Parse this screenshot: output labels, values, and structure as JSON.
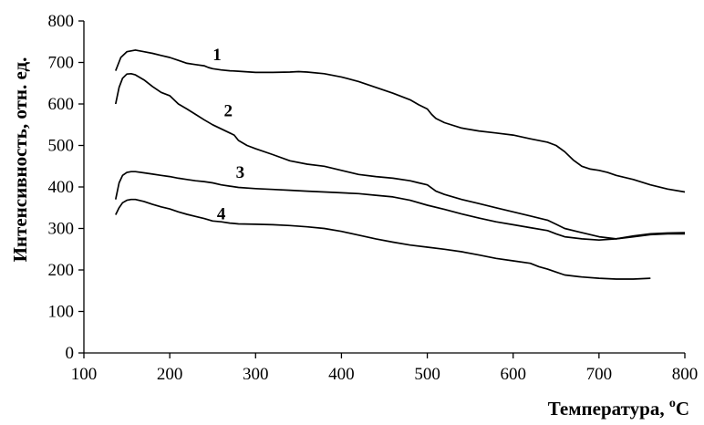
{
  "chart_data": {
    "type": "line",
    "xlabel": "Температура, °C",
    "xlabel_main": "Температура, ",
    "xlabel_sup": "o",
    "xlabel_unit": "C",
    "ylabel": "Интенсивность, отн. ед.",
    "xlim": [
      100,
      800
    ],
    "ylim": [
      0,
      800
    ],
    "xticks": [
      100,
      200,
      300,
      400,
      500,
      600,
      700,
      800
    ],
    "yticks": [
      0,
      100,
      200,
      300,
      400,
      500,
      600,
      700,
      800
    ],
    "grid": false,
    "series": [
      {
        "name": "1",
        "label_at": [
          250,
          705
        ],
        "x": [
          137,
          143,
          150,
          160,
          170,
          180,
          190,
          200,
          210,
          220,
          230,
          240,
          245,
          250,
          260,
          270,
          280,
          300,
          320,
          340,
          350,
          360,
          380,
          400,
          420,
          440,
          460,
          480,
          490,
          500,
          505,
          510,
          520,
          540,
          560,
          580,
          600,
          620,
          640,
          650,
          660,
          670,
          680,
          690,
          700,
          710,
          720,
          740,
          760,
          780,
          800
        ],
        "y": [
          680,
          712,
          726,
          730,
          726,
          722,
          717,
          712,
          705,
          698,
          695,
          692,
          688,
          685,
          682,
          680,
          679,
          676,
          676,
          677,
          678,
          677,
          673,
          665,
          654,
          640,
          626,
          610,
          598,
          588,
          575,
          565,
          555,
          542,
          535,
          530,
          525,
          516,
          508,
          500,
          485,
          465,
          450,
          443,
          440,
          435,
          428,
          418,
          405,
          395,
          388
        ]
      },
      {
        "name": "2",
        "label_at": [
          263,
          570
        ],
        "x": [
          137,
          141,
          145,
          150,
          155,
          160,
          170,
          180,
          190,
          200,
          210,
          220,
          230,
          240,
          250,
          260,
          270,
          275,
          280,
          290,
          300,
          320,
          340,
          360,
          380,
          400,
          420,
          440,
          460,
          480,
          490,
          500,
          510,
          520,
          540,
          560,
          580,
          600,
          620,
          640,
          650,
          660,
          680,
          700,
          720,
          740,
          760,
          780,
          800
        ],
        "y": [
          600,
          640,
          662,
          672,
          673,
          670,
          658,
          642,
          628,
          620,
          600,
          588,
          575,
          562,
          550,
          540,
          530,
          525,
          512,
          500,
          492,
          478,
          463,
          455,
          450,
          440,
          430,
          425,
          421,
          415,
          410,
          405,
          390,
          382,
          370,
          360,
          350,
          340,
          330,
          320,
          310,
          300,
          290,
          280,
          275,
          280,
          285,
          287,
          287
        ]
      },
      {
        "name": "3",
        "label_at": [
          277,
          422
        ],
        "x": [
          137,
          141,
          145,
          150,
          155,
          160,
          170,
          180,
          190,
          200,
          210,
          220,
          230,
          240,
          250,
          260,
          270,
          280,
          300,
          320,
          340,
          360,
          380,
          400,
          420,
          440,
          460,
          480,
          500,
          520,
          540,
          560,
          580,
          600,
          620,
          640,
          650,
          660,
          680,
          700,
          720,
          740,
          760,
          780,
          800
        ],
        "y": [
          370,
          410,
          428,
          435,
          437,
          437,
          434,
          431,
          428,
          425,
          421,
          418,
          415,
          413,
          410,
          405,
          402,
          399,
          396,
          394,
          392,
          390,
          388,
          386,
          384,
          380,
          376,
          368,
          356,
          346,
          335,
          325,
          316,
          309,
          302,
          295,
          287,
          280,
          275,
          272,
          275,
          282,
          287,
          289,
          290
        ]
      },
      {
        "name": "4",
        "label_at": [
          255,
          322
        ],
        "x": [
          137,
          141,
          145,
          150,
          155,
          160,
          170,
          180,
          190,
          200,
          210,
          220,
          230,
          240,
          250,
          260,
          270,
          280,
          300,
          320,
          340,
          360,
          380,
          400,
          420,
          440,
          460,
          480,
          500,
          520,
          540,
          560,
          580,
          600,
          620,
          630,
          640,
          650,
          660,
          680,
          700,
          720,
          740,
          760
        ],
        "y": [
          333,
          350,
          362,
          368,
          370,
          370,
          365,
          358,
          352,
          347,
          340,
          334,
          329,
          324,
          318,
          316,
          313,
          311,
          310,
          309,
          307,
          304,
          300,
          293,
          284,
          275,
          267,
          260,
          255,
          250,
          244,
          236,
          228,
          222,
          216,
          208,
          202,
          195,
          188,
          183,
          180,
          178,
          178,
          180
        ]
      }
    ]
  }
}
